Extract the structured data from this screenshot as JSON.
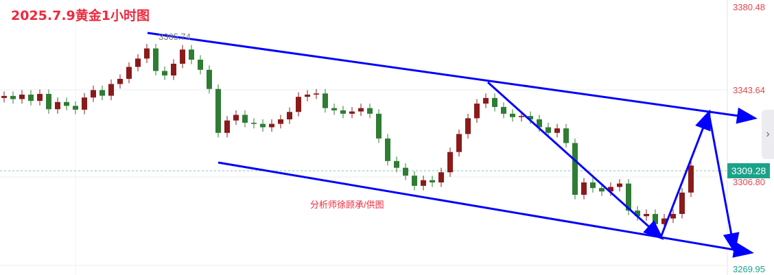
{
  "title": "2025.7.9黄金1小时图",
  "watermark": "分析师徐顾承/供图",
  "current_price": "3309.28",
  "side_tab_icon": "chevron-right-icon",
  "colors": {
    "up": "#8b1a1a",
    "down": "#2e7d32",
    "trendline": "#0000ff",
    "title": "#f0283c",
    "current_price": "#1aa38a"
  },
  "chart_data": {
    "type": "candlestick",
    "title": "2025.7.9黄金1小时图",
    "y_ticks": [
      "3380.48",
      "3343.64",
      "3306.80",
      "3269.95"
    ],
    "ylim": [
      3269.95,
      3380.48
    ],
    "peak_label": "3365.74",
    "first_open": 3340.0,
    "closes": [
      3340.9,
      3339.5,
      3341.5,
      3338.7,
      3341.8,
      3335.0,
      3338.2,
      3336.5,
      3334.8,
      3340.2,
      3343.5,
      3341.0,
      3346.2,
      3348.5,
      3353.8,
      3357.5,
      3362.0,
      3352.0,
      3350.0,
      3355.2,
      3361.5,
      3357.0,
      3352.5,
      3344.0,
      3324.5,
      3330.0,
      3332.5,
      3329.0,
      3328.5,
      3327.0,
      3328.5,
      3330.5,
      3333.8,
      3340.5,
      3341.5,
      3342.0,
      3335.5,
      3334.5,
      3333.0,
      3334.0,
      3335.5,
      3333.0,
      3322.0,
      3312.0,
      3309.0,
      3305.5,
      3301.0,
      3303.5,
      3302.5,
      3307.0,
      3316.0,
      3324.0,
      3331.0,
      3337.5,
      3340.0,
      3336.0,
      3333.0,
      3331.5,
      3332.0,
      3330.5,
      3327.0,
      3324.5,
      3326.5,
      3320.0,
      3297.0,
      3302.5,
      3300.0,
      3298.5,
      3300.5,
      3302.0,
      3290.0,
      3287.5,
      3288.5,
      3284.0,
      3286.5,
      3288.5,
      3298.0,
      3310.0
    ],
    "grid": true
  }
}
